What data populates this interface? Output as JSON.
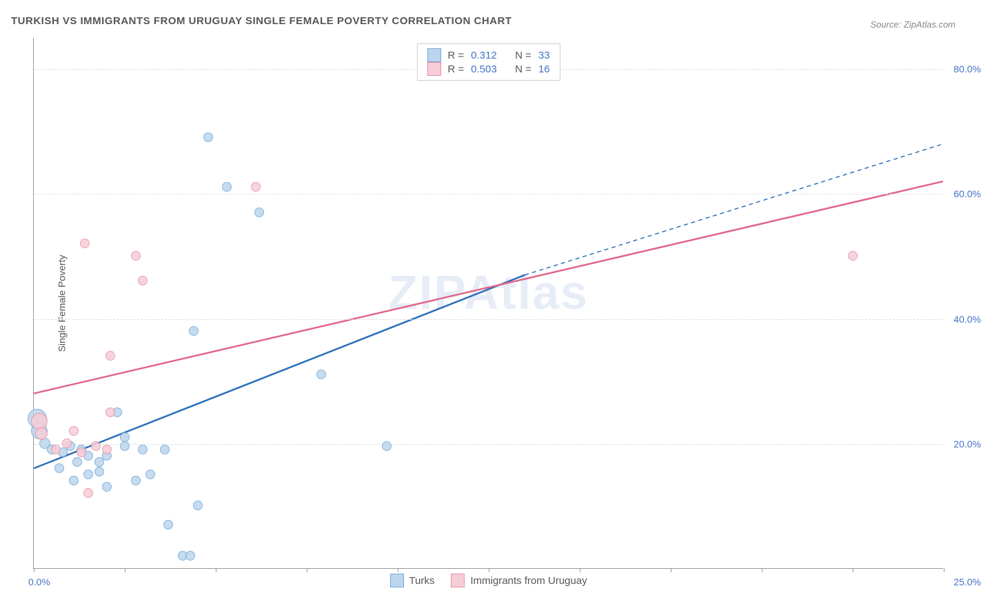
{
  "title": "TURKISH VS IMMIGRANTS FROM URUGUAY SINGLE FEMALE POVERTY CORRELATION CHART",
  "source": "Source: ZipAtlas.com",
  "watermark": "ZIPAtlas",
  "yaxis_title": "Single Female Poverty",
  "xlim": [
    0,
    25
  ],
  "ylim": [
    0,
    85
  ],
  "x_ticks": [
    0,
    2.5,
    5,
    7.5,
    10,
    12.5,
    15,
    17.5,
    20,
    22.5,
    25
  ],
  "y_gridlines": [
    20,
    40,
    60,
    80
  ],
  "y_tick_labels": [
    "20.0%",
    "40.0%",
    "60.0%",
    "80.0%"
  ],
  "x_label_min": "0.0%",
  "x_label_max": "25.0%",
  "series": [
    {
      "name": "Turks",
      "fill": "#bdd5ec",
      "stroke": "#6fa8dc",
      "line_color": "#2c6fbb",
      "R": "0.312",
      "N": "33",
      "regression_solid": {
        "x1": 0,
        "y1": 16,
        "x2": 13.5,
        "y2": 47
      },
      "regression_dashed": {
        "x1": 13.5,
        "y1": 47,
        "x2": 25,
        "y2": 68
      },
      "points": [
        {
          "x": 0.1,
          "y": 24,
          "r": 14
        },
        {
          "x": 0.15,
          "y": 22,
          "r": 12
        },
        {
          "x": 0.3,
          "y": 20,
          "r": 8
        },
        {
          "x": 0.5,
          "y": 19,
          "r": 7
        },
        {
          "x": 0.8,
          "y": 18.5,
          "r": 7
        },
        {
          "x": 0.7,
          "y": 16,
          "r": 7
        },
        {
          "x": 1.0,
          "y": 19.5,
          "r": 7
        },
        {
          "x": 1.2,
          "y": 17,
          "r": 7
        },
        {
          "x": 1.3,
          "y": 19,
          "r": 7
        },
        {
          "x": 1.5,
          "y": 18,
          "r": 7
        },
        {
          "x": 1.5,
          "y": 15,
          "r": 7
        },
        {
          "x": 1.1,
          "y": 14,
          "r": 7
        },
        {
          "x": 1.8,
          "y": 17,
          "r": 7
        },
        {
          "x": 1.8,
          "y": 15.5,
          "r": 7
        },
        {
          "x": 2.0,
          "y": 13,
          "r": 7
        },
        {
          "x": 2.0,
          "y": 18,
          "r": 7
        },
        {
          "x": 2.3,
          "y": 25,
          "r": 7
        },
        {
          "x": 2.5,
          "y": 19.5,
          "r": 7
        },
        {
          "x": 2.5,
          "y": 21,
          "r": 7
        },
        {
          "x": 2.8,
          "y": 14,
          "r": 7
        },
        {
          "x": 3.0,
          "y": 19,
          "r": 7
        },
        {
          "x": 3.2,
          "y": 15,
          "r": 7
        },
        {
          "x": 3.6,
          "y": 19,
          "r": 7
        },
        {
          "x": 3.7,
          "y": 7,
          "r": 7
        },
        {
          "x": 4.1,
          "y": 2,
          "r": 7
        },
        {
          "x": 4.3,
          "y": 2,
          "r": 7
        },
        {
          "x": 4.5,
          "y": 10,
          "r": 7
        },
        {
          "x": 4.4,
          "y": 38,
          "r": 7
        },
        {
          "x": 4.8,
          "y": 69,
          "r": 7
        },
        {
          "x": 5.3,
          "y": 61,
          "r": 7
        },
        {
          "x": 6.2,
          "y": 57,
          "r": 7
        },
        {
          "x": 7.9,
          "y": 31,
          "r": 7
        },
        {
          "x": 9.7,
          "y": 19.5,
          "r": 7
        }
      ]
    },
    {
      "name": "Immigrants from Uruguay",
      "fill": "#f6cdd6",
      "stroke": "#e890a4",
      "line_color": "#e06688",
      "R": "0.503",
      "N": "16",
      "regression_solid": {
        "x1": 0,
        "y1": 28,
        "x2": 25,
        "y2": 62
      },
      "regression_dashed": null,
      "points": [
        {
          "x": 0.15,
          "y": 23.5,
          "r": 12
        },
        {
          "x": 0.2,
          "y": 21.5,
          "r": 9
        },
        {
          "x": 0.6,
          "y": 19,
          "r": 7
        },
        {
          "x": 0.9,
          "y": 20,
          "r": 7
        },
        {
          "x": 1.1,
          "y": 22,
          "r": 7
        },
        {
          "x": 1.3,
          "y": 18.5,
          "r": 7
        },
        {
          "x": 1.5,
          "y": 12,
          "r": 7
        },
        {
          "x": 1.7,
          "y": 19.5,
          "r": 7
        },
        {
          "x": 2.0,
          "y": 19,
          "r": 7
        },
        {
          "x": 2.1,
          "y": 25,
          "r": 7
        },
        {
          "x": 1.4,
          "y": 52,
          "r": 7
        },
        {
          "x": 2.1,
          "y": 34,
          "r": 7
        },
        {
          "x": 2.8,
          "y": 50,
          "r": 7
        },
        {
          "x": 3.0,
          "y": 46,
          "r": 7
        },
        {
          "x": 6.1,
          "y": 61,
          "r": 7
        },
        {
          "x": 22.5,
          "y": 50,
          "r": 7
        }
      ]
    }
  ],
  "legend_top_labels": {
    "R": "R =",
    "N": "N ="
  },
  "legend_bottom": [
    {
      "label": "Turks",
      "fill": "#bdd5ec",
      "stroke": "#6fa8dc"
    },
    {
      "label": "Immigrants from Uruguay",
      "fill": "#f6cdd6",
      "stroke": "#e890a4"
    }
  ]
}
